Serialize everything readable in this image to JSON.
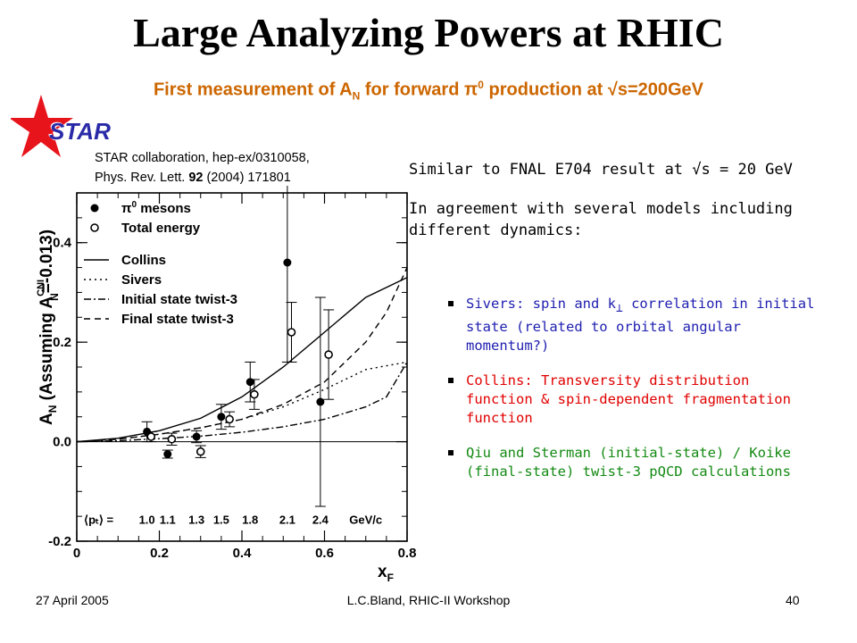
{
  "slide": {
    "title": "Large Analyzing Powers at RHIC",
    "subtitle_pre": "First measurement of A",
    "subtitle_sub": "N",
    "subtitle_mid": " for forward π",
    "subtitle_sup": "0",
    "subtitle_post": " production at √s=200GeV",
    "logo_text": "STAR",
    "citation_line1": "STAR collaboration, hep-ex/0310058,",
    "citation_line2_pre": "Phys. Rev. Lett. ",
    "citation_line2_bold": "92",
    "citation_line2_post": " (2004) 171801",
    "right_line1": "Similar to FNAL E704 result at √s = 20 GeV",
    "right_line2": "In agreement with several models including different dynamics:",
    "bullets": [
      {
        "pre": "Sivers: spin and k",
        "sub": "⊥",
        "post": " correlation in initial state (related to orbital angular momentum?)",
        "color": "#1f1fb0"
      },
      {
        "pre": "Collins: Transversity distribution function & spin-dependent fragmentation function",
        "sub": "",
        "post": "",
        "color": "#e00000"
      },
      {
        "pre": "Qiu and Sterman (initial-state) / Koike (final-state) twist-3 pQCD calculations",
        "sub": "",
        "post": "",
        "color": "#138a13"
      }
    ],
    "footer_date": "27 April 2005",
    "footer_center": "L.C.Bland, RHIC-II Workshop",
    "footer_page": "40"
  },
  "chart_data": {
    "type": "scatter",
    "xlabel": "x",
    "xlabel_sub": "F",
    "ylabel": "A",
    "ylabel_sub": "N",
    "ylabel_rest": " (Assuming A",
    "ylabel_sup": "CNI",
    "ylabel_sub2": "N",
    "ylabel_end": "=-0.013)",
    "xlim": [
      0,
      0.8
    ],
    "ylim": [
      -0.2,
      0.5
    ],
    "x_ticks": [
      0,
      0.2,
      0.4,
      0.6,
      0.8
    ],
    "x_tick_labels": [
      "0",
      "0.2",
      "0.4",
      "0.6",
      "0.8"
    ],
    "y_ticks": [
      -0.2,
      0.0,
      0.2,
      0.4
    ],
    "y_tick_labels": [
      "-0.2",
      "0.0",
      "0.2",
      "0.4"
    ],
    "legend": [
      {
        "label_pre": "π",
        "label_sup": "0",
        "label_post": " mesons",
        "marker": "filled"
      },
      {
        "label_pre": "Total energy",
        "label_sup": "",
        "label_post": "",
        "marker": "open"
      },
      {
        "label_pre": "Collins",
        "label_sup": "",
        "label_post": "",
        "line": "solid"
      },
      {
        "label_pre": "Sivers",
        "label_sup": "",
        "label_post": "",
        "line": "dotted"
      },
      {
        "label_pre": "Initial state twist-3",
        "label_sup": "",
        "label_post": "",
        "line": "dashdot"
      },
      {
        "label_pre": "Final state twist-3",
        "label_sup": "",
        "label_post": "",
        "line": "dashed"
      }
    ],
    "pt_label": "⟨pₜ⟩ =",
    "pt_values": [
      "1.0",
      "1.1",
      "1.3",
      "1.5",
      "1.8",
      "2.1",
      "2.4"
    ],
    "pt_unit": "GeV/c",
    "series": [
      {
        "name": "π⁰ mesons",
        "marker": "filled",
        "points": [
          {
            "x": 0.17,
            "y": 0.02,
            "err": 0.01,
            "sys": 0.02
          },
          {
            "x": 0.22,
            "y": -0.025,
            "err": 0.008,
            "sys": 0.0
          },
          {
            "x": 0.29,
            "y": 0.01,
            "err": 0.01,
            "sys": 0.012
          },
          {
            "x": 0.35,
            "y": 0.05,
            "err": 0.018,
            "sys": 0.025
          },
          {
            "x": 0.42,
            "y": 0.12,
            "err": 0.025,
            "sys": 0.04
          },
          {
            "x": 0.51,
            "y": 0.36,
            "err": 0.12,
            "sys": 0.2
          },
          {
            "x": 0.59,
            "y": 0.08,
            "err": 0.19,
            "sys": 0.21
          }
        ]
      },
      {
        "name": "Total energy",
        "marker": "open",
        "points": [
          {
            "x": 0.18,
            "y": 0.01,
            "err": 0.01
          },
          {
            "x": 0.23,
            "y": 0.005,
            "err": 0.012
          },
          {
            "x": 0.3,
            "y": -0.02,
            "err": 0.012
          },
          {
            "x": 0.37,
            "y": 0.045,
            "err": 0.015
          },
          {
            "x": 0.43,
            "y": 0.095,
            "err": 0.03
          },
          {
            "x": 0.52,
            "y": 0.22,
            "err": 0.06
          },
          {
            "x": 0.61,
            "y": 0.175,
            "err": 0.09
          }
        ]
      }
    ],
    "curves": [
      {
        "name": "Collins",
        "style": "solid",
        "x": [
          0.0,
          0.1,
          0.2,
          0.3,
          0.4,
          0.5,
          0.6,
          0.7,
          0.8
        ],
        "y": [
          0.0,
          0.007,
          0.022,
          0.047,
          0.09,
          0.15,
          0.22,
          0.29,
          0.33
        ]
      },
      {
        "name": "Sivers",
        "style": "dotted",
        "x": [
          0.0,
          0.1,
          0.2,
          0.3,
          0.4,
          0.5,
          0.6,
          0.7,
          0.8
        ],
        "y": [
          0.0,
          0.005,
          0.015,
          0.028,
          0.045,
          0.07,
          0.105,
          0.145,
          0.16
        ]
      },
      {
        "name": "Initial state twist-3",
        "style": "dashdot",
        "x": [
          0.0,
          0.1,
          0.2,
          0.3,
          0.4,
          0.5,
          0.6,
          0.7,
          0.75,
          0.8
        ],
        "y": [
          0.0,
          0.002,
          0.006,
          0.011,
          0.019,
          0.03,
          0.045,
          0.07,
          0.09,
          0.16
        ]
      },
      {
        "name": "Final state twist-3",
        "style": "dashed",
        "x": [
          0.0,
          0.1,
          0.2,
          0.3,
          0.4,
          0.5,
          0.6,
          0.7,
          0.75,
          0.8
        ],
        "y": [
          0.0,
          0.005,
          0.015,
          0.028,
          0.045,
          0.075,
          0.12,
          0.2,
          0.26,
          0.35
        ]
      }
    ]
  }
}
